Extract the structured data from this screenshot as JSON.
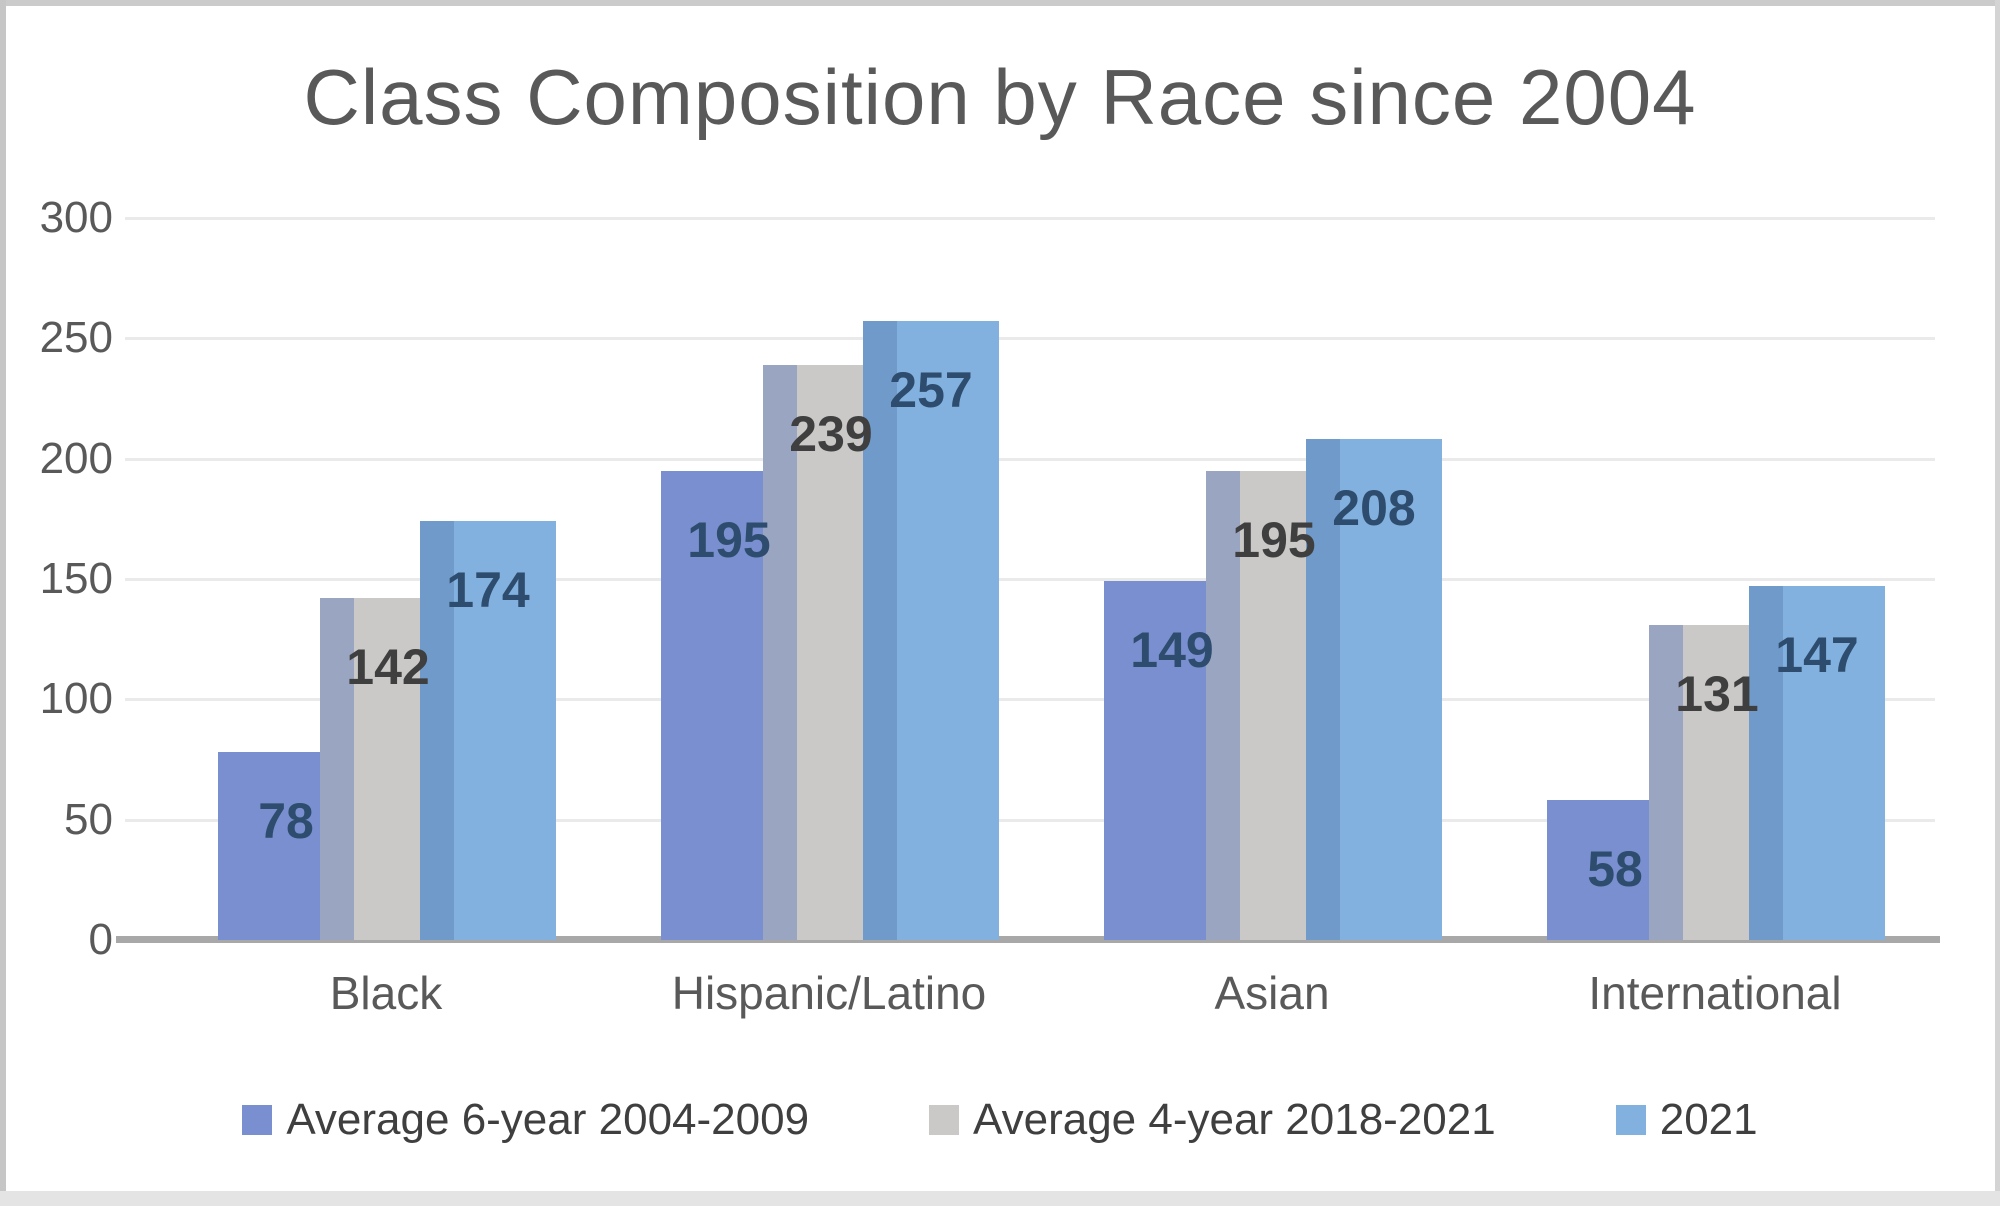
{
  "chart_data": {
    "type": "bar",
    "title": "Class Composition by Race since 2004",
    "categories": [
      "Black",
      "Hispanic/Latino",
      "Asian",
      "International"
    ],
    "series": [
      {
        "name": "Average 6-year 2004-2009",
        "color": "#7A8FD0",
        "label_color": "#2E4C6D",
        "values": [
          78,
          195,
          149,
          58
        ]
      },
      {
        "name": "Average 4-year 2018-2021",
        "color": "#CAC9C7",
        "label_color": "#3F3F3F",
        "overlap_tint": "#9AA5C2",
        "values": [
          142,
          239,
          195,
          131
        ]
      },
      {
        "name": "2021",
        "color": "#82B1E0",
        "label_color": "#2E4C6D",
        "overlap_tint": "#6F9AC9",
        "values": [
          174,
          257,
          208,
          147
        ]
      }
    ],
    "xlabel": "",
    "ylabel": "",
    "ylim": [
      0,
      300
    ],
    "ytick_interval": 50,
    "ytick_labels": [
      "0",
      "50",
      "100",
      "150",
      "200",
      "250",
      "300"
    ],
    "grid": true,
    "legend_position": "bottom",
    "bar_value_labels_shown": true
  },
  "colors": {
    "background": "#FFFFFF",
    "gridline": "#EAEAEA",
    "axis_line": "#A8A8A8",
    "axis_text": "#595959",
    "category_text": "#595959",
    "legend_text": "#3F3F3F",
    "title_text": "#595959",
    "frame_border": "#C9C9C9"
  }
}
